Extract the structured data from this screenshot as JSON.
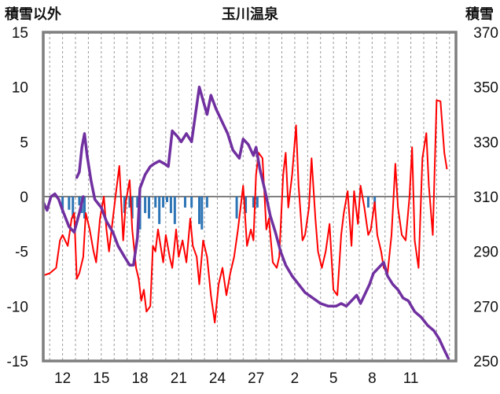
{
  "chart_data": {
    "type": "line",
    "title": "玉川温泉",
    "left_axis": {
      "label": "積雪以外",
      "ylim": [
        -15,
        15
      ],
      "ticks": [
        "-15",
        "-10",
        "-5",
        "0",
        "5",
        "10",
        "15"
      ],
      "tick_values": [
        -15,
        -10,
        -5,
        0,
        5,
        10,
        15
      ]
    },
    "right_axis": {
      "label": "積雪",
      "ylim": [
        250,
        370
      ],
      "ticks": [
        "250",
        "270",
        "290",
        "310",
        "330",
        "350",
        "370"
      ],
      "tick_values": [
        250,
        270,
        290,
        310,
        330,
        350,
        370
      ]
    },
    "x_axis": {
      "range": [
        10.5,
        42.5
      ],
      "ticks": [
        "12",
        "15",
        "18",
        "21",
        "24",
        "27",
        "2",
        "5",
        "8",
        "11"
      ],
      "tick_positions": [
        12,
        15,
        18,
        21,
        24,
        27,
        30,
        33,
        36,
        39
      ]
    },
    "grid": "vertical dashed",
    "colors": {
      "temperature": "#ff0000",
      "snow_depth": "#7030a0",
      "precip": "#2e75b6",
      "frame": "#7f7f7f",
      "zero": "#808080"
    },
    "series": [
      {
        "key": "temperature",
        "kind": "line",
        "axis": "left",
        "points": [
          [
            10.5,
            -7.2
          ],
          [
            11,
            -7.0
          ],
          [
            11.5,
            -6.5
          ],
          [
            11.8,
            -4.0
          ],
          [
            12,
            -3.5
          ],
          [
            12.4,
            -4.5
          ],
          [
            12.7,
            -2.0
          ],
          [
            12.9,
            -1.5
          ],
          [
            13.1,
            -7.5
          ],
          [
            13.3,
            -7.0
          ],
          [
            13.6,
            -5.5
          ],
          [
            13.8,
            -1.5
          ],
          [
            14.1,
            -3.0
          ],
          [
            14.4,
            -5.0
          ],
          [
            14.6,
            -6.0
          ],
          [
            14.9,
            -2.0
          ],
          [
            15.2,
            0.0
          ],
          [
            15.4,
            -3.0
          ],
          [
            15.6,
            -5.0
          ],
          [
            15.9,
            -2.0
          ],
          [
            16.1,
            0.0
          ],
          [
            16.4,
            2.8
          ],
          [
            16.7,
            -4.0
          ],
          [
            16.9,
            -0.5
          ],
          [
            17.2,
            1.5
          ],
          [
            17.4,
            -3.0
          ],
          [
            17.7,
            -6.5
          ],
          [
            17.9,
            -7.5
          ],
          [
            18.1,
            -9.5
          ],
          [
            18.3,
            -8.5
          ],
          [
            18.5,
            -10.5
          ],
          [
            18.8,
            -10.0
          ],
          [
            19.0,
            -4.5
          ],
          [
            19.2,
            -5.0
          ],
          [
            19.4,
            -3.0
          ],
          [
            19.6,
            -4.5
          ],
          [
            19.8,
            -6.0
          ],
          [
            20.0,
            -3.5
          ],
          [
            20.3,
            -5.5
          ],
          [
            20.5,
            -6.5
          ],
          [
            20.8,
            -3.0
          ],
          [
            21.0,
            -5.5
          ],
          [
            21.3,
            -4.0
          ],
          [
            21.6,
            -6.0
          ],
          [
            21.9,
            -2.0
          ],
          [
            22.1,
            -4.5
          ],
          [
            22.4,
            -5.5
          ],
          [
            22.6,
            -8.0
          ],
          [
            22.9,
            -4.0
          ],
          [
            23.2,
            -5.5
          ],
          [
            23.5,
            -9.0
          ],
          [
            23.8,
            -11.5
          ],
          [
            24.1,
            -8.0
          ],
          [
            24.4,
            -6.5
          ],
          [
            24.7,
            -9.0
          ],
          [
            25.0,
            -7.0
          ],
          [
            25.3,
            -5.5
          ],
          [
            25.6,
            -3.0
          ],
          [
            25.8,
            -1.0
          ],
          [
            26.0,
            1.0
          ],
          [
            26.3,
            -4.5
          ],
          [
            26.6,
            -3.0
          ],
          [
            26.8,
            -4.0
          ],
          [
            27.0,
            2.0
          ],
          [
            27.2,
            4.0
          ],
          [
            27.5,
            3.5
          ],
          [
            27.8,
            -3.0
          ],
          [
            28.0,
            -2.0
          ],
          [
            28.3,
            -6.0
          ],
          [
            28.6,
            -6.5
          ],
          [
            28.8,
            -5.5
          ],
          [
            29.1,
            2.0
          ],
          [
            29.3,
            4.0
          ],
          [
            29.5,
            -1.0
          ],
          [
            29.8,
            2.0
          ],
          [
            30.1,
            6.5
          ],
          [
            30.3,
            1.0
          ],
          [
            30.6,
            -4.0
          ],
          [
            30.8,
            -3.5
          ],
          [
            31.1,
            -1.0
          ],
          [
            31.3,
            3.5
          ],
          [
            31.6,
            -2.0
          ],
          [
            31.8,
            -5.0
          ],
          [
            32.1,
            -6.5
          ],
          [
            32.4,
            -5.0
          ],
          [
            32.7,
            -2.5
          ],
          [
            33.0,
            -8.5
          ],
          [
            33.3,
            -9.0
          ],
          [
            33.6,
            -3.5
          ],
          [
            33.8,
            -1.5
          ],
          [
            34.1,
            0.5
          ],
          [
            34.4,
            -4.5
          ],
          [
            34.6,
            0.5
          ],
          [
            34.9,
            -2.5
          ],
          [
            35.1,
            1.0
          ],
          [
            35.4,
            -1.0
          ],
          [
            35.7,
            -3.5
          ],
          [
            35.9,
            -3.0
          ],
          [
            36.2,
            -0.5
          ],
          [
            36.4,
            -3.5
          ],
          [
            36.7,
            -5.0
          ],
          [
            36.9,
            -6.5
          ],
          [
            37.2,
            -7.0
          ],
          [
            37.5,
            -3.5
          ],
          [
            37.8,
            3.0
          ],
          [
            38.0,
            -1.0
          ],
          [
            38.3,
            -3.5
          ],
          [
            38.6,
            -4.0
          ],
          [
            38.9,
            0.0
          ],
          [
            39.1,
            4.5
          ],
          [
            39.3,
            -4.0
          ],
          [
            39.6,
            -6.5
          ],
          [
            39.9,
            3.5
          ],
          [
            40.2,
            5.8
          ],
          [
            40.4,
            1.0
          ],
          [
            40.7,
            -3.5
          ],
          [
            41.0,
            8.8
          ],
          [
            41.3,
            8.7
          ],
          [
            41.6,
            4.0
          ],
          [
            41.8,
            2.5
          ]
        ]
      },
      {
        "key": "snow_depth",
        "kind": "line",
        "axis": "right",
        "segments": [
          [
            [
              10.5,
              308
            ],
            [
              10.8,
              305
            ],
            [
              11.1,
              310
            ],
            [
              11.4,
              311
            ],
            [
              11.7,
              309
            ],
            [
              12.0,
              305
            ],
            [
              12.5,
              299
            ],
            [
              12.9,
              297
            ],
            [
              13.3,
              304
            ],
            [
              13.6,
              310
            ]
          ],
          [
            [
              13.1,
              317
            ],
            [
              13.3,
              319
            ],
            [
              13.5,
              328
            ],
            [
              13.7,
              333
            ],
            [
              13.9,
              325
            ],
            [
              14.2,
              316
            ],
            [
              14.5,
              309
            ],
            [
              15.0,
              306
            ],
            [
              15.4,
              301
            ],
            [
              15.9,
              297
            ],
            [
              16.3,
              292
            ],
            [
              16.8,
              288
            ],
            [
              17.2,
              285
            ],
            [
              17.5,
              285
            ],
            [
              17.8,
              295
            ],
            [
              18.0,
              313
            ],
            [
              18.4,
              318
            ],
            [
              18.8,
              321
            ],
            [
              19.1,
              322
            ],
            [
              19.5,
              323
            ],
            [
              19.9,
              322
            ],
            [
              20.2,
              321
            ],
            [
              20.5,
              334
            ],
            [
              20.9,
              332
            ],
            [
              21.2,
              330
            ],
            [
              21.6,
              333
            ],
            [
              22.0,
              330
            ],
            [
              22.3,
              340
            ],
            [
              22.6,
              350
            ],
            [
              22.9,
              345
            ],
            [
              23.2,
              340
            ],
            [
              23.5,
              347
            ],
            [
              23.9,
              342
            ],
            [
              24.3,
              338
            ],
            [
              24.8,
              333
            ],
            [
              25.2,
              327
            ],
            [
              25.7,
              324
            ],
            [
              26.0,
              331
            ],
            [
              26.4,
              329
            ],
            [
              26.8,
              325
            ],
            [
              27.0,
              328
            ],
            [
              27.3,
              320
            ],
            [
              27.7,
              312
            ],
            [
              28.1,
              303
            ],
            [
              28.5,
              297
            ],
            [
              28.9,
              290
            ],
            [
              29.3,
              285
            ],
            [
              29.8,
              281
            ],
            [
              30.3,
              278
            ],
            [
              30.8,
              275
            ],
            [
              31.4,
              273
            ],
            [
              32.0,
              271
            ],
            [
              32.6,
              270
            ],
            [
              33.2,
              270
            ],
            [
              33.6,
              271
            ],
            [
              34.0,
              270
            ],
            [
              34.4,
              272
            ],
            [
              34.8,
              274
            ],
            [
              35.1,
              271
            ],
            [
              35.5,
              275
            ],
            [
              35.8,
              278
            ],
            [
              36.1,
              282
            ],
            [
              36.5,
              284
            ],
            [
              36.9,
              286
            ],
            [
              37.2,
              281
            ],
            [
              37.6,
              278
            ],
            [
              38.0,
              276
            ],
            [
              38.4,
              273
            ],
            [
              38.8,
              272
            ],
            [
              39.3,
              268
            ],
            [
              39.8,
              266
            ],
            [
              40.3,
              263
            ],
            [
              40.8,
              261
            ],
            [
              41.2,
              258
            ],
            [
              41.6,
              254
            ],
            [
              41.9,
              251
            ]
          ]
        ]
      },
      {
        "key": "precip",
        "kind": "bar",
        "axis": "left",
        "bars": [
          [
            12.0,
            -1.5
          ],
          [
            12.5,
            -1.2
          ],
          [
            12.8,
            -2.0
          ],
          [
            13.3,
            -0.8
          ],
          [
            13.5,
            -1.5
          ],
          [
            13.7,
            -2.0
          ],
          [
            16.8,
            -1.5
          ],
          [
            17.2,
            -1.0
          ],
          [
            17.4,
            -2.0
          ],
          [
            17.8,
            -1.0
          ],
          [
            18.0,
            -3.0
          ],
          [
            18.4,
            -1.5
          ],
          [
            18.7,
            -2.0
          ],
          [
            19.2,
            -1.0
          ],
          [
            19.5,
            -2.5
          ],
          [
            19.8,
            -1.0
          ],
          [
            20.1,
            -0.5
          ],
          [
            20.4,
            -1.5
          ],
          [
            20.7,
            -2.5
          ],
          [
            21.5,
            -1.0
          ],
          [
            22.0,
            -1.0
          ],
          [
            22.6,
            -2.5
          ],
          [
            22.8,
            -3.0
          ],
          [
            23.2,
            -1.0
          ],
          [
            25.5,
            -2.0
          ],
          [
            26.2,
            -1.5
          ],
          [
            26.8,
            -1.0
          ],
          [
            27.1,
            -1.0
          ],
          [
            35.7,
            -1.0
          ],
          [
            36.2,
            -1.0
          ]
        ]
      }
    ]
  }
}
